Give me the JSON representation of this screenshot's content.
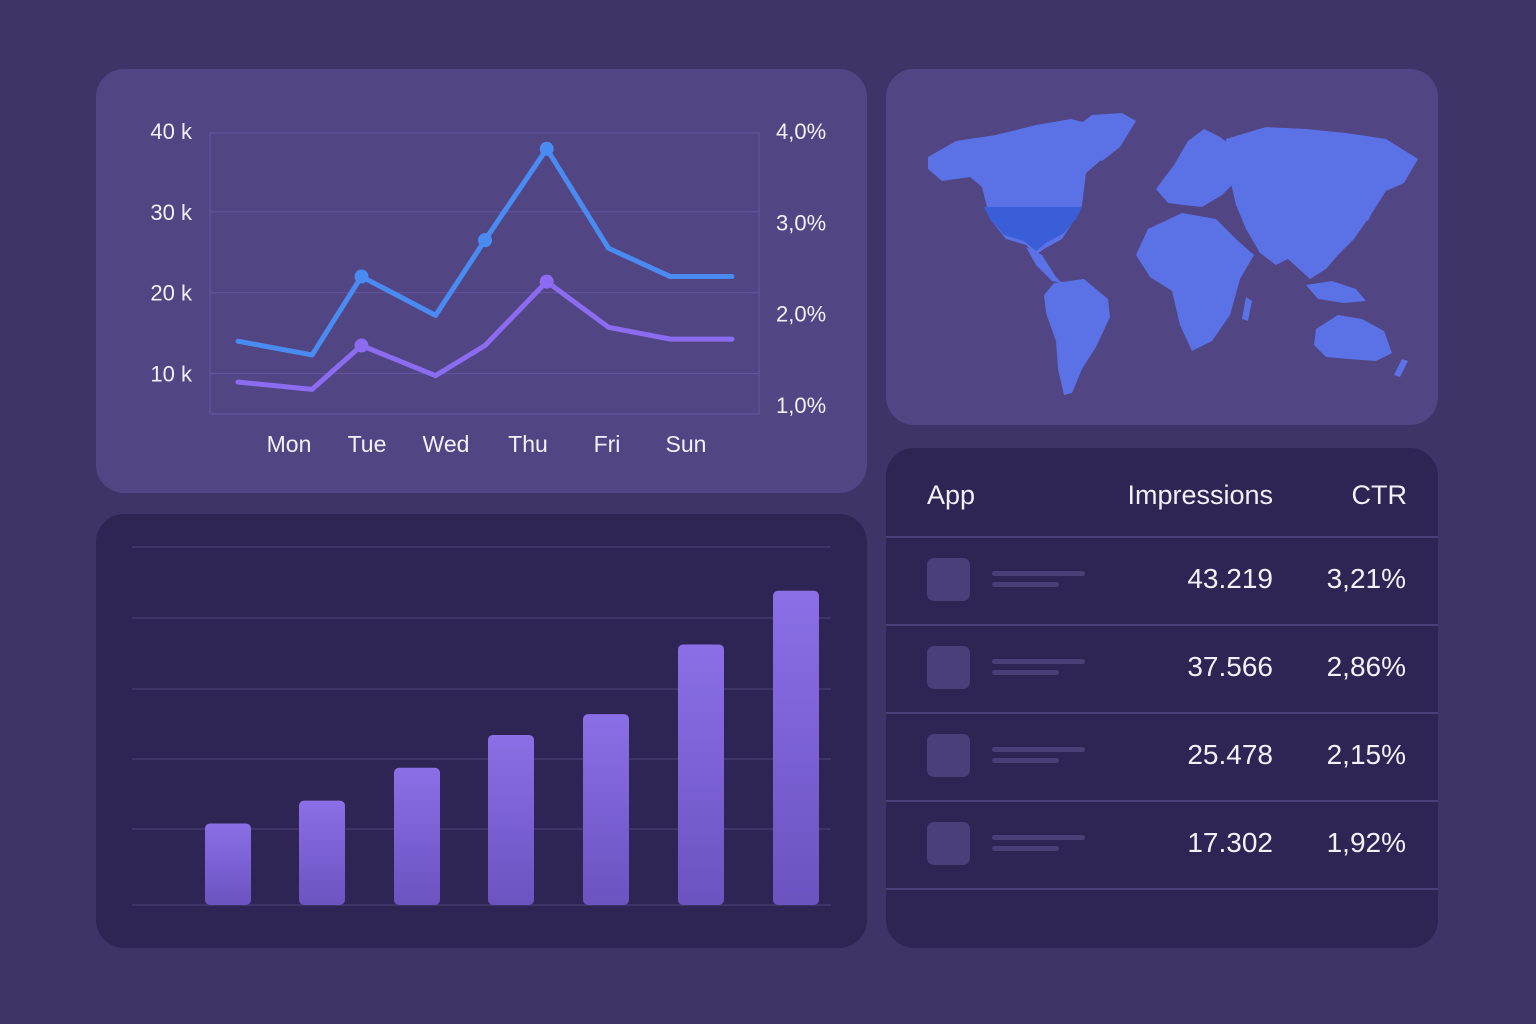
{
  "line_chart": {
    "chart_data": {
      "type": "line",
      "categories": [
        "Mon",
        "Tue",
        "Wed",
        "Thu",
        "Fri",
        "Sun"
      ],
      "y_left_ticks": [
        "40 k",
        "30 k",
        "20 k",
        "10 k"
      ],
      "y_right_ticks": [
        "4,0%",
        "3,0%",
        "2,0%",
        "1,0%"
      ],
      "ylim_left": [
        5000,
        40000
      ],
      "ylim_right": [
        0.9,
        4.0
      ],
      "grid": true,
      "series": [
        {
          "axis": "left",
          "color": "#4a8bf2",
          "x": [
            0.0,
            0.6,
            1.0,
            1.6,
            2.0,
            2.5,
            3.0,
            3.5,
            4.0
          ],
          "values": [
            14000,
            12300,
            22000,
            17200,
            26500,
            37800,
            25500,
            22000,
            22000
          ]
        },
        {
          "axis": "right",
          "color": "#8b6cf0",
          "x": [
            0.0,
            0.6,
            1.0,
            1.6,
            2.0,
            2.5,
            3.0,
            3.5,
            4.0
          ],
          "values": [
            1.25,
            1.17,
            1.65,
            1.32,
            1.65,
            2.35,
            1.85,
            1.72,
            1.72
          ]
        }
      ]
    }
  },
  "map": {
    "highlight_color": "#3a5ed8",
    "land_color": "#5a72e6",
    "highlighted_region": "United States"
  },
  "bar_chart": {
    "chart_data": {
      "type": "bar",
      "values": [
        82,
        105,
        138,
        171,
        192,
        262,
        316
      ],
      "ylim": [
        0,
        360
      ],
      "grid": true,
      "bar_color": "#7b60d6"
    }
  },
  "table": {
    "headers": {
      "app": "App",
      "impressions": "Impressions",
      "ctr": "CTR"
    },
    "rows": [
      {
        "impressions": "43.219",
        "ctr": "3,21%"
      },
      {
        "impressions": "37.566",
        "ctr": "2,86%"
      },
      {
        "impressions": "25.478",
        "ctr": "2,15%"
      },
      {
        "impressions": "17.302",
        "ctr": "1,92%"
      }
    ]
  }
}
